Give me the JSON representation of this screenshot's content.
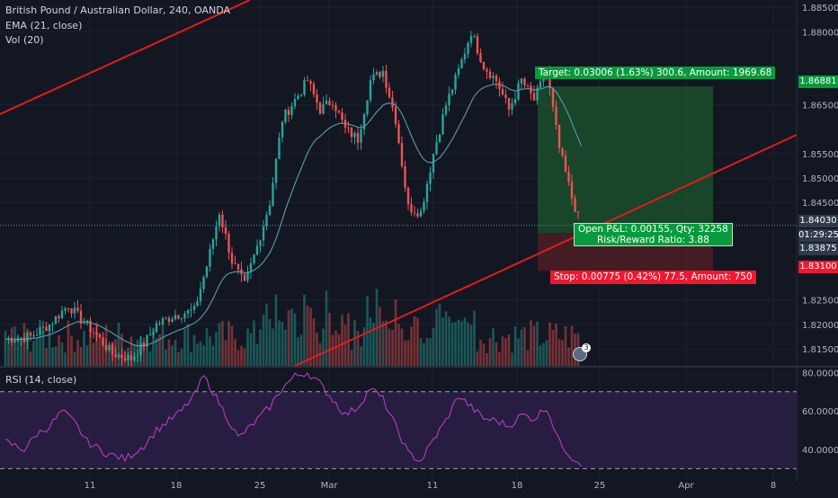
{
  "legend": {
    "symbol_line": "British Pound / Australian Dollar, 240, OANDA",
    "ema_label": "EMA (21, close)",
    "vol_label": "Vol (20)",
    "rsi_label": "RSI (14, close)"
  },
  "colors": {
    "background": "#131722",
    "up": "#26a69a",
    "down": "#ef5350",
    "ema": "#5b9cb0",
    "trendline": "#e01b1b",
    "rsi": "#b040c0",
    "rsi_band": "#2a1e44",
    "target_zone": "#1b4d2b",
    "stop_zone": "#4d1d24",
    "target_label": "#089b3d",
    "stop_label": "#f0172f"
  },
  "axis": {
    "price_ticks": [
      "1.88500",
      "1.88000",
      "1.86500",
      "1.85500",
      "1.85000",
      "1.84500",
      "1.82500",
      "1.82000",
      "1.81500"
    ],
    "rsi_ticks": [
      "80.0000",
      "60.0000",
      "40.0000"
    ],
    "time_ticks": [
      "11",
      "18",
      "25",
      "Mar",
      "11",
      "18",
      "25",
      "Apr",
      "8"
    ]
  },
  "price_tags": {
    "target": "1.86881",
    "current": "1.84030",
    "countdown": "01:29:25",
    "level": "1.83875",
    "stop": "1.83100"
  },
  "position": {
    "target_text": "Target: 0.03006 (1.63%) 300.6, Amount: 1969.68",
    "open_text": "Open P&L: 0.00155, Qty: 32258",
    "ratio_text": "Risk/Reward Ratio: 3.88",
    "stop_text": "Stop: 0.00775 (0.42%) 77.5, Amount: 750"
  },
  "event_badge": "3",
  "chart_data": [
    {
      "type": "candlestick",
      "title": "British Pound / Australian Dollar, 240, OANDA",
      "y_range": [
        1.8115,
        1.8865
      ],
      "x_dates": [
        "Feb 11",
        "Feb 18",
        "Feb 25",
        "Mar 1",
        "Mar 11",
        "Mar 18",
        "Mar 25",
        "Apr 1",
        "Apr 8"
      ],
      "waypoints": [
        [
          0,
          1.817
        ],
        [
          8,
          1.8175
        ],
        [
          14,
          1.82
        ],
        [
          20,
          1.824
        ],
        [
          24,
          1.821
        ],
        [
          28,
          1.8185
        ],
        [
          34,
          1.814
        ],
        [
          40,
          1.813
        ],
        [
          44,
          1.816
        ],
        [
          48,
          1.82
        ],
        [
          54,
          1.822
        ],
        [
          60,
          1.8228
        ],
        [
          64,
          1.832
        ],
        [
          68,
          1.843
        ],
        [
          72,
          1.833
        ],
        [
          76,
          1.828
        ],
        [
          80,
          1.836
        ],
        [
          84,
          1.845
        ],
        [
          88,
          1.862
        ],
        [
          92,
          1.866
        ],
        [
          96,
          1.87
        ],
        [
          100,
          1.864
        ],
        [
          104,
          1.866
        ],
        [
          108,
          1.86
        ],
        [
          112,
          1.858
        ],
        [
          116,
          1.87
        ],
        [
          120,
          1.872
        ],
        [
          124,
          1.862
        ],
        [
          128,
          1.844
        ],
        [
          132,
          1.843
        ],
        [
          136,
          1.855
        ],
        [
          140,
          1.865
        ],
        [
          144,
          1.872
        ],
        [
          148,
          1.88
        ],
        [
          152,
          1.873
        ],
        [
          156,
          1.87
        ],
        [
          160,
          1.864
        ],
        [
          164,
          1.87
        ],
        [
          168,
          1.866
        ],
        [
          172,
          1.872
        ],
        [
          176,
          1.856
        ],
        [
          180,
          1.846
        ],
        [
          183,
          1.84
        ]
      ],
      "ema_period": 21,
      "trendlines": [
        {
          "from": [
            "Feb 4",
            1.867
          ],
          "to": [
            "Feb 26",
            1.886
          ]
        },
        {
          "from": [
            "Mar 1",
            1.811
          ],
          "to": [
            "Apr 8",
            1.8585
          ]
        }
      ],
      "position": {
        "entry": 1.83875,
        "target": 1.86881,
        "stop": 1.831,
        "current": 1.8403,
        "qty": 32258,
        "open_pl": 0.00155,
        "risk_reward": 3.88
      }
    },
    {
      "type": "bar",
      "title": "Vol (20)"
    },
    {
      "type": "line",
      "title": "RSI (14, close)",
      "ylim": [
        30,
        80
      ],
      "levels": [
        70,
        30
      ],
      "waypoints": [
        [
          0,
          44
        ],
        [
          6,
          40
        ],
        [
          10,
          48
        ],
        [
          14,
          52
        ],
        [
          18,
          60
        ],
        [
          22,
          54
        ],
        [
          26,
          44
        ],
        [
          32,
          38
        ],
        [
          38,
          35
        ],
        [
          44,
          42
        ],
        [
          48,
          50
        ],
        [
          52,
          55
        ],
        [
          56,
          60
        ],
        [
          60,
          68
        ],
        [
          63,
          78
        ],
        [
          66,
          70
        ],
        [
          70,
          58
        ],
        [
          74,
          46
        ],
        [
          78,
          52
        ],
        [
          84,
          62
        ],
        [
          88,
          72
        ],
        [
          92,
          78
        ],
        [
          96,
          80
        ],
        [
          100,
          74
        ],
        [
          104,
          66
        ],
        [
          108,
          58
        ],
        [
          112,
          62
        ],
        [
          116,
          72
        ],
        [
          120,
          66
        ],
        [
          124,
          52
        ],
        [
          128,
          38
        ],
        [
          132,
          34
        ],
        [
          136,
          45
        ],
        [
          140,
          55
        ],
        [
          144,
          68
        ],
        [
          148,
          62
        ],
        [
          152,
          56
        ],
        [
          156,
          55
        ],
        [
          160,
          52
        ],
        [
          164,
          58
        ],
        [
          168,
          56
        ],
        [
          172,
          62
        ],
        [
          176,
          44
        ],
        [
          180,
          36
        ],
        [
          183,
          33
        ]
      ]
    }
  ]
}
